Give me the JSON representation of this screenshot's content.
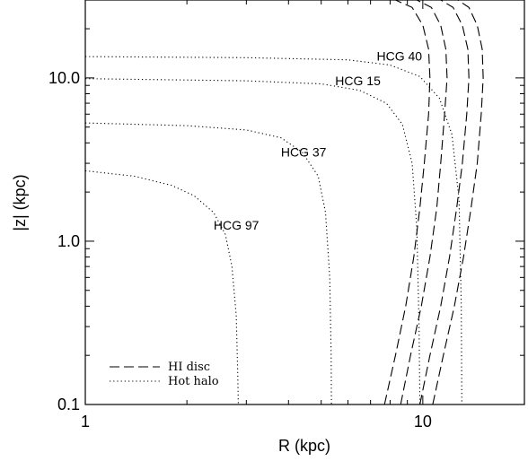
{
  "chart_data": {
    "type": "line",
    "xlabel": "R (kpc)",
    "ylabel": "|z| (kpc)",
    "x_scale": "log",
    "y_scale": "log",
    "xlim": [
      1,
      20
    ],
    "ylim": [
      0.1,
      30
    ],
    "x_ticks": [
      {
        "value": 1,
        "label": "1"
      },
      {
        "value": 10,
        "label": "10"
      }
    ],
    "y_ticks": [
      {
        "value": 0.1,
        "label": "0.1"
      },
      {
        "value": 1,
        "label": "1.0"
      },
      {
        "value": 10,
        "label": "10.0"
      }
    ],
    "grid": false,
    "legend_position": "bottom-left",
    "legend": [
      {
        "label": "HI disc",
        "style": "dashed"
      },
      {
        "label": "Hot halo",
        "style": "dotted"
      }
    ],
    "series": [
      {
        "name": "HCG 97",
        "style": "dotted",
        "label_at": [
          2.4,
          1.18
        ],
        "x": [
          1,
          1.4,
          1.8,
          2.1,
          2.4,
          2.6,
          2.72,
          2.8,
          2.83,
          2.84
        ],
        "y": [
          2.7,
          2.5,
          2.2,
          1.9,
          1.5,
          1.1,
          0.7,
          0.35,
          0.15,
          0.1
        ]
      },
      {
        "name": "HCG 37",
        "style": "dotted",
        "label_at": [
          3.8,
          3.3
        ],
        "x": [
          1,
          2,
          3,
          3.8,
          4.4,
          4.9,
          5.15,
          5.3,
          5.35,
          5.36
        ],
        "y": [
          5.3,
          5.1,
          4.8,
          4.3,
          3.5,
          2.5,
          1.5,
          0.6,
          0.2,
          0.1
        ]
      },
      {
        "name": "HCG 15",
        "style": "dotted",
        "label_at": [
          5.5,
          9.0
        ],
        "x": [
          1,
          3,
          5,
          6.5,
          7.8,
          8.7,
          9.3,
          9.6,
          9.75,
          9.8
        ],
        "y": [
          9.9,
          9.6,
          9.2,
          8.4,
          7.0,
          5.2,
          3.0,
          1.2,
          0.3,
          0.1
        ]
      },
      {
        "name": "HCG 40",
        "style": "dotted",
        "label_at": [
          7.3,
          12.8
        ],
        "x": [
          1,
          3,
          6,
          8,
          9.8,
          11.2,
          12.2,
          12.8,
          13.0,
          13.05
        ],
        "y": [
          13.5,
          13.3,
          12.9,
          12.0,
          10.2,
          7.5,
          4.5,
          1.8,
          0.4,
          0.1
        ]
      },
      {
        "name": "HI disc 1",
        "style": "dashed",
        "x": [
          7.7,
          8.3,
          8.9,
          9.4,
          9.8,
          10.1,
          10.4,
          10.5,
          10.4,
          10.0,
          9.3,
          8.3
        ],
        "y": [
          0.1,
          0.2,
          0.4,
          0.8,
          1.6,
          3.0,
          6.0,
          10.0,
          15.0,
          21.0,
          27.0,
          30.0
        ]
      },
      {
        "name": "HI disc 2",
        "style": "dashed",
        "x": [
          8.6,
          9.2,
          9.9,
          10.5,
          11.0,
          11.3,
          11.6,
          11.8,
          11.7,
          11.3,
          10.6,
          9.6
        ],
        "y": [
          0.1,
          0.2,
          0.4,
          0.8,
          1.6,
          3.0,
          6.0,
          10.0,
          15.0,
          21.0,
          27.0,
          30.0
        ]
      },
      {
        "name": "HI disc 3",
        "style": "dashed",
        "x": [
          9.8,
          10.5,
          11.3,
          12.0,
          12.6,
          13.1,
          13.5,
          13.7,
          13.6,
          13.1,
          12.3,
          11.3
        ],
        "y": [
          0.1,
          0.2,
          0.4,
          0.8,
          1.6,
          3.0,
          6.0,
          10.0,
          15.0,
          21.0,
          27.0,
          30.0
        ]
      },
      {
        "name": "HI disc 4",
        "style": "dashed",
        "x": [
          10.7,
          11.5,
          12.4,
          13.2,
          13.9,
          14.5,
          14.9,
          15.1,
          15.0,
          14.5,
          13.7,
          12.7
        ],
        "y": [
          0.1,
          0.2,
          0.4,
          0.8,
          1.6,
          3.0,
          6.0,
          10.0,
          15.0,
          21.0,
          27.0,
          30.0
        ]
      }
    ]
  }
}
